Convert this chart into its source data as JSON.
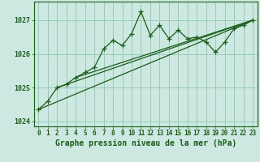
{
  "title": "Graphe pression niveau de la mer (hPa)",
  "bg_color": "#cce8e0",
  "grid_color": "#99ccbb",
  "line_color": "#1a5c1a",
  "x_values": [
    0,
    1,
    2,
    3,
    4,
    5,
    6,
    7,
    8,
    9,
    10,
    11,
    12,
    13,
    14,
    15,
    16,
    17,
    18,
    19,
    20,
    21,
    22,
    23
  ],
  "y_values": [
    1024.35,
    1024.6,
    1025.0,
    1025.1,
    1025.3,
    1025.45,
    1025.6,
    1026.15,
    1026.4,
    1026.25,
    1026.6,
    1027.25,
    1026.55,
    1026.85,
    1026.45,
    1026.7,
    1026.45,
    1026.5,
    1026.35,
    1026.05,
    1026.35,
    1026.75,
    1026.85,
    1027.0
  ],
  "trend1_x": [
    0,
    23
  ],
  "trend1_y": [
    1024.35,
    1027.0
  ],
  "trend2_x": [
    2,
    23
  ],
  "trend2_y": [
    1025.0,
    1027.0
  ],
  "trend3_x": [
    4,
    23
  ],
  "trend3_y": [
    1025.3,
    1027.0
  ],
  "ylim": [
    1023.85,
    1027.55
  ],
  "xlim": [
    -0.5,
    23.5
  ],
  "yticks": [
    1024,
    1025,
    1026,
    1027
  ],
  "xticks": [
    0,
    1,
    2,
    3,
    4,
    5,
    6,
    7,
    8,
    9,
    10,
    11,
    12,
    13,
    14,
    15,
    16,
    17,
    18,
    19,
    20,
    21,
    22,
    23
  ],
  "xlabel_fontsize": 7,
  "tick_fontsize": 5.5,
  "ytick_fontsize": 6
}
